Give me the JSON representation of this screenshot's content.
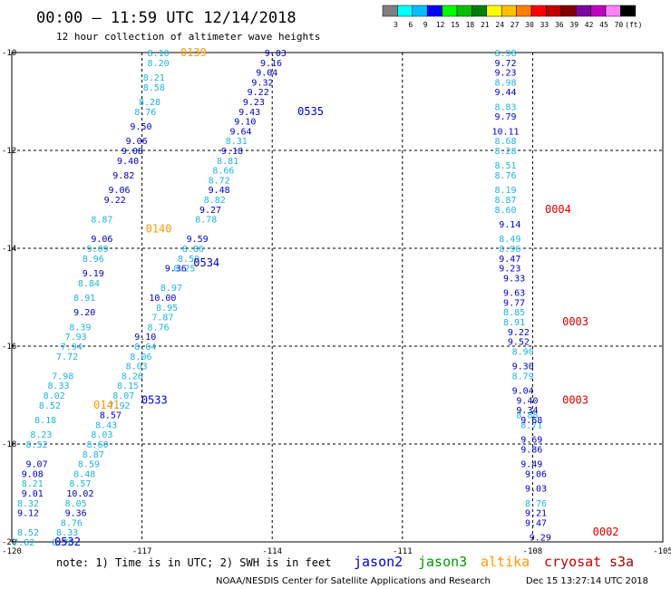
{
  "header": {
    "title": "00:00 – 11:59 UTC 12/14/2018",
    "subtitle": "12 hour collection of altimeter wave heights"
  },
  "legend": {
    "colors": [
      "#808080",
      "#00ffff",
      "#00bfff",
      "#0000ff",
      "#00ff00",
      "#00c000",
      "#008000",
      "#ffff00",
      "#ffc000",
      "#ff8000",
      "#ff0000",
      "#c00000",
      "#800000",
      "#8000a0",
      "#c000c0",
      "#ff80ff",
      "#000000"
    ],
    "labels": [
      "3",
      "6",
      "9",
      "12",
      "15",
      "18",
      "21",
      "24",
      "27",
      "30",
      "33",
      "36",
      "39",
      "42",
      "45",
      "70",
      "(ft)"
    ]
  },
  "footer": {
    "note": "note: 1) Time is in UTC; 2) SWH is in feet",
    "credit": "NOAA/NESDIS Center for Satellite Applications and Research",
    "timestamp": "Dec 15 13:27:14 UTC 2018"
  },
  "satellites": [
    {
      "name": "jason2",
      "color": "#0000cc"
    },
    {
      "name": "jason3",
      "color": "#009900"
    },
    {
      "name": "altika",
      "color": "#ff9900"
    },
    {
      "name": "cryosat",
      "color": "#cc0000"
    },
    {
      "name": "s3a",
      "color": "#990000"
    }
  ],
  "chart_data": {
    "type": "scatter",
    "title": "00:00 – 11:59 UTC 12/14/2018",
    "xlim": [
      -120,
      -105
    ],
    "ylim": [
      -20,
      -10
    ],
    "x_ticks": [
      "-120",
      "-117",
      "-114",
      "-111",
      "-108",
      "-105"
    ],
    "y_ticks": [
      "-10",
      "-12",
      "-14",
      "-16",
      "-18",
      "-20"
    ],
    "grid": true,
    "series": [
      {
        "name": "0535",
        "color": "#0000cc",
        "points": [
          [
            -114.3,
            -10.0,
            "9.03"
          ],
          [
            -114.4,
            -10.2,
            "9.16"
          ],
          [
            -114.5,
            -10.4,
            "9.04"
          ],
          [
            -114.6,
            -10.6,
            "9.32"
          ],
          [
            -114.7,
            -10.8,
            "9.22"
          ],
          [
            -114.8,
            -11.0,
            "9.23"
          ],
          [
            -114.9,
            -11.2,
            "9.43"
          ],
          [
            -115.0,
            -11.4,
            "9.10"
          ],
          [
            -115.1,
            -11.6,
            "9.64"
          ],
          [
            -115.3,
            -12.0,
            "9.18"
          ],
          [
            -115.6,
            -12.8,
            "9.48"
          ],
          [
            -115.8,
            -13.2,
            "9.27"
          ],
          [
            -116.1,
            -13.8,
            "9.59"
          ]
        ]
      },
      {
        "name": "0534",
        "color": "#0000cc",
        "points": [
          [
            -116.6,
            -14.4,
            "9.36"
          ],
          [
            -116.9,
            -15.0,
            "10.00"
          ],
          [
            -117.3,
            -15.8,
            "9.10"
          ]
        ]
      },
      {
        "name": "0535-lt",
        "color": "#1fb4e0",
        "points": [
          [
            -115.2,
            -11.8,
            "8.31"
          ],
          [
            -115.4,
            -12.2,
            "8.81"
          ],
          [
            -115.5,
            -12.4,
            "8.66"
          ],
          [
            -115.6,
            -12.6,
            "8.72"
          ],
          [
            -115.7,
            -13.0,
            "8.82"
          ],
          [
            -115.9,
            -13.4,
            "8.78"
          ],
          [
            -116.2,
            -14.0,
            "8.86"
          ],
          [
            -116.3,
            -14.2,
            "8.50"
          ],
          [
            -116.4,
            -14.4,
            "8.25"
          ],
          [
            -116.7,
            -14.8,
            "8.97"
          ],
          [
            -116.8,
            -15.2,
            "8.95"
          ],
          [
            -116.9,
            -15.4,
            "7.87"
          ],
          [
            -117.0,
            -15.6,
            "8.76"
          ],
          [
            -117.3,
            -16.0,
            "8.64"
          ],
          [
            -117.4,
            -16.2,
            "8.06"
          ],
          [
            -117.5,
            -16.4,
            "8.03"
          ],
          [
            -117.6,
            -16.6,
            "8.26"
          ],
          [
            -117.7,
            -16.8,
            "8.15"
          ],
          [
            -117.8,
            -17.0,
            "8.07"
          ],
          [
            -117.9,
            -17.2,
            "7.92"
          ]
        ]
      },
      {
        "name": "0533",
        "color": "#0000cc",
        "points": [
          [
            -118.1,
            -17.4,
            "8.57"
          ]
        ]
      },
      {
        "name": "0533-lt",
        "color": "#1fb4e0",
        "points": [
          [
            -118.2,
            -17.6,
            "8.43"
          ],
          [
            -118.3,
            -17.8,
            "8.03"
          ],
          [
            -118.4,
            -18.0,
            "8.60"
          ],
          [
            -118.5,
            -18.2,
            "8.87"
          ],
          [
            -118.6,
            -18.4,
            "8.59"
          ],
          [
            -118.7,
            -18.6,
            "8.48"
          ],
          [
            -118.8,
            -18.8,
            "8.57"
          ],
          [
            -118.9,
            -19.2,
            "8.05"
          ],
          [
            -119.0,
            -19.6,
            "8.76"
          ],
          [
            -119.1,
            -19.8,
            "8.33"
          ],
          [
            -119.2,
            -20.0,
            "8.78"
          ]
        ]
      },
      {
        "name": "0533-dk",
        "color": "#0000cc",
        "points": [
          [
            -118.8,
            -19.0,
            "10.02"
          ],
          [
            -118.9,
            -19.4,
            "9.36"
          ]
        ]
      },
      {
        "name": "0139",
        "color": "#1fb4e0",
        "points": [
          [
            -117.0,
            -10.0,
            "8.10"
          ],
          [
            -117.0,
            -10.2,
            "8.20"
          ],
          [
            -117.1,
            -10.5,
            "8.21"
          ],
          [
            -117.1,
            -10.7,
            "8.58"
          ],
          [
            -117.2,
            -11.0,
            "8.28"
          ],
          [
            -117.3,
            -11.2,
            "8.76"
          ],
          [
            -118.3,
            -13.4,
            "8.87"
          ],
          [
            -118.4,
            -14.0,
            "9.09"
          ],
          [
            -118.5,
            -14.2,
            "8.96"
          ],
          [
            -118.6,
            -14.7,
            "8.84"
          ],
          [
            -118.7,
            -15.0,
            "8.91"
          ],
          [
            -118.8,
            -15.6,
            "8.39"
          ],
          [
            -118.9,
            -15.8,
            "7.93"
          ],
          [
            -119.0,
            -16.0,
            "7.94"
          ],
          [
            -119.1,
            -16.2,
            "7.72"
          ],
          [
            -119.2,
            -16.6,
            "7.98"
          ],
          [
            -119.3,
            -16.8,
            "8.33"
          ],
          [
            -119.4,
            -17.0,
            "8.02"
          ],
          [
            -119.5,
            -17.2,
            "8.52"
          ],
          [
            -119.6,
            -17.5,
            "8.18"
          ],
          [
            -119.7,
            -17.8,
            "8.23"
          ],
          [
            -119.8,
            -18.0,
            "8.52"
          ],
          [
            -119.9,
            -18.8,
            "8.21"
          ],
          [
            -120.0,
            -19.2,
            "8.32"
          ],
          [
            -120.0,
            -19.8,
            "8.52"
          ],
          [
            -120.1,
            -20.0,
            "7.82"
          ]
        ]
      },
      {
        "name": "0139-dk",
        "color": "#0000cc",
        "points": [
          [
            -117.4,
            -11.5,
            "9.50"
          ],
          [
            -117.5,
            -11.8,
            "9.06"
          ],
          [
            -117.6,
            -12.0,
            "9.08"
          ],
          [
            -117.7,
            -12.2,
            "9.40"
          ],
          [
            -117.8,
            -12.5,
            "9.82"
          ],
          [
            -117.9,
            -12.8,
            "9.06"
          ],
          [
            -118.0,
            -13.0,
            "9.22"
          ],
          [
            -118.3,
            -13.8,
            "9.06"
          ],
          [
            -118.5,
            -14.5,
            "9.19"
          ],
          [
            -118.7,
            -15.3,
            "9.20"
          ],
          [
            -119.8,
            -18.4,
            "9.07"
          ],
          [
            -119.9,
            -18.6,
            "9.08"
          ],
          [
            -119.9,
            -19.0,
            "9.01"
          ],
          [
            -120.0,
            -19.4,
            "9.12"
          ]
        ]
      },
      {
        "name": "0004",
        "color": "#1fb4e0",
        "points": [
          [
            -109.0,
            -10.0,
            "8.98"
          ],
          [
            -109.0,
            -10.6,
            "8.98"
          ],
          [
            -109.0,
            -11.1,
            "8.83"
          ],
          [
            -109.0,
            -11.8,
            "8.68"
          ],
          [
            -109.0,
            -12.0,
            "8.28"
          ],
          [
            -109.0,
            -12.3,
            "8.51"
          ],
          [
            -109.0,
            -12.5,
            "8.76"
          ],
          [
            -109.0,
            -12.8,
            "8.19"
          ],
          [
            -109.0,
            -13.0,
            "8.87"
          ],
          [
            -109.0,
            -13.2,
            "8.60"
          ],
          [
            -108.9,
            -13.8,
            "8.49"
          ],
          [
            -108.9,
            -14.0,
            "8.96"
          ],
          [
            -108.8,
            -15.3,
            "8.85"
          ],
          [
            -108.8,
            -15.5,
            "8.91"
          ],
          [
            -108.6,
            -16.1,
            "8.90"
          ],
          [
            -108.6,
            -16.6,
            "8.79"
          ],
          [
            -108.5,
            -17.4,
            "8.88"
          ],
          [
            -108.4,
            -17.6,
            "8.71"
          ],
          [
            -108.3,
            -19.2,
            "8.76"
          ]
        ]
      },
      {
        "name": "0004-dk",
        "color": "#0000cc",
        "points": [
          [
            -109.0,
            -10.2,
            "9.72"
          ],
          [
            -109.0,
            -10.4,
            "9.23"
          ],
          [
            -109.0,
            -10.8,
            "9.44"
          ],
          [
            -109.0,
            -11.3,
            "9.79"
          ],
          [
            -109.0,
            -11.6,
            "10.11"
          ],
          [
            -108.9,
            -13.5,
            "9.14"
          ],
          [
            -108.9,
            -14.2,
            "9.47"
          ],
          [
            -108.9,
            -14.4,
            "9.23"
          ],
          [
            -108.8,
            -14.6,
            "9.33"
          ],
          [
            -108.8,
            -14.9,
            "9.63"
          ],
          [
            -108.8,
            -15.1,
            "9.77"
          ],
          [
            -108.7,
            -15.7,
            "9.22"
          ],
          [
            -108.7,
            -15.9,
            "9.52"
          ],
          [
            -108.6,
            -16.4,
            "9.30"
          ],
          [
            -108.6,
            -16.9,
            "9.04"
          ],
          [
            -108.5,
            -17.1,
            "9.40"
          ],
          [
            -108.5,
            -17.3,
            "9.34"
          ],
          [
            -108.4,
            -17.5,
            "9.68"
          ],
          [
            -108.4,
            -17.9,
            "9.69"
          ],
          [
            -108.4,
            -18.1,
            "9.86"
          ],
          [
            -108.4,
            -18.4,
            "9.49"
          ],
          [
            -108.3,
            -18.6,
            "9.06"
          ],
          [
            -108.3,
            -18.9,
            "9.03"
          ],
          [
            -108.3,
            -19.4,
            "9.21"
          ],
          [
            -108.3,
            -19.6,
            "9.47"
          ],
          [
            -108.2,
            -19.9,
            "9.29"
          ]
        ]
      }
    ],
    "pass_labels": [
      {
        "text": "0139",
        "x": -116.2,
        "y": -10.0,
        "color": "#ff9900"
      },
      {
        "text": "0535",
        "x": -113.5,
        "y": -11.2,
        "color": "#0000cc"
      },
      {
        "text": "0140",
        "x": -117.0,
        "y": -13.6,
        "color": "#ff9900"
      },
      {
        "text": "0534",
        "x": -115.9,
        "y": -14.3,
        "color": "#0000cc"
      },
      {
        "text": "0533",
        "x": -117.1,
        "y": -17.1,
        "color": "#0000cc"
      },
      {
        "text": "0141",
        "x": -118.2,
        "y": -17.2,
        "color": "#ff9900"
      },
      {
        "text": "0532",
        "x": -119.1,
        "y": -20.0,
        "color": "#0000cc"
      },
      {
        "text": "0004",
        "x": -107.8,
        "y": -13.2,
        "color": "#dd0000"
      },
      {
        "text": "0003",
        "x": -107.4,
        "y": -15.5,
        "color": "#dd0000"
      },
      {
        "text": "0003",
        "x": -107.4,
        "y": -17.1,
        "color": "#dd0000"
      },
      {
        "text": "0002",
        "x": -106.7,
        "y": -19.8,
        "color": "#dd0000"
      }
    ]
  }
}
